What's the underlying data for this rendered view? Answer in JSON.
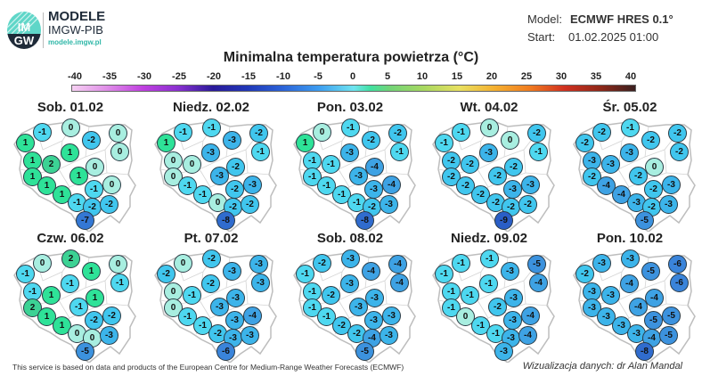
{
  "header": {
    "logo_text": "IMGW",
    "brand_title": "MODELE",
    "brand_subtitle": "IMGW-PIB",
    "brand_url": "modele.imgw.pl",
    "model_label": "Model:",
    "model_value": "ECMWF HRES 0.1°",
    "start_label": "Start:",
    "start_value": "01.02.2025 01:00"
  },
  "title": "Minimalna temperatura powietrza (°C)",
  "colorbar": {
    "ticks": [
      "-40",
      "-35",
      "-30",
      "-25",
      "-20",
      "-15",
      "-10",
      "-5",
      "0",
      "5",
      "10",
      "15",
      "20",
      "25",
      "30",
      "35",
      "40"
    ],
    "range": [
      -40,
      40
    ]
  },
  "maps": [
    {
      "label": "Sob. 01.02",
      "values": [
        1,
        -1,
        0,
        -2,
        0,
        0,
        1,
        1,
        2,
        0,
        1,
        1,
        1,
        -1,
        0,
        1,
        -1,
        -2,
        -2,
        -7
      ]
    },
    {
      "label": "Niedz. 02.02",
      "values": [
        1,
        -1,
        -1,
        -3,
        -2,
        -1,
        -3,
        0,
        0,
        -2,
        0,
        -3,
        -1,
        -2,
        -3,
        -1,
        0,
        -2,
        -2,
        -8
      ]
    },
    {
      "label": "Pon. 03.02",
      "values": [
        1,
        0,
        -1,
        -2,
        -2,
        -1,
        -3,
        -1,
        -1,
        -4,
        -1,
        -3,
        -1,
        -3,
        -4,
        -1,
        -1,
        -2,
        -3,
        -8
      ]
    },
    {
      "label": "Wt. 04.02",
      "values": [
        -1,
        -1,
        0,
        0,
        -2,
        -1,
        -3,
        -2,
        -2,
        -2,
        -2,
        -2,
        -2,
        -3,
        -3,
        -2,
        -2,
        -2,
        -2,
        -9
      ]
    },
    {
      "label": "Śr. 05.02",
      "values": [
        -2,
        -2,
        -1,
        -2,
        -2,
        -2,
        -3,
        -3,
        -3,
        0,
        -2,
        -2,
        -4,
        -2,
        -3,
        -4,
        -3,
        -2,
        -3,
        -5
      ]
    },
    {
      "label": "Czw. 06.02",
      "values": [
        -1,
        0,
        2,
        1,
        0,
        -1,
        -1,
        -1,
        1,
        1,
        2,
        -1,
        1,
        -2,
        -2,
        1,
        0,
        0,
        -3,
        -5
      ]
    },
    {
      "label": "Pt. 07.02",
      "values": [
        -2,
        0,
        -2,
        -3,
        -3,
        -3,
        -2,
        0,
        -1,
        -3,
        0,
        -3,
        -1,
        -3,
        -4,
        -1,
        -2,
        -3,
        -3,
        -6
      ]
    },
    {
      "label": "Sob. 08.02",
      "values": [
        -1,
        -2,
        -3,
        -4,
        -4,
        -4,
        -3,
        -1,
        -2,
        -3,
        -1,
        -3,
        -1,
        -3,
        -3,
        -2,
        -2,
        -4,
        -3,
        -5
      ]
    },
    {
      "label": "Niedz. 09.02",
      "values": [
        -1,
        -1,
        -1,
        -3,
        -5,
        -4,
        -1,
        -1,
        -1,
        -3,
        -1,
        -2,
        0,
        -3,
        -4,
        -1,
        -1,
        -3,
        -4,
        -3
      ]
    },
    {
      "label": "Pon. 10.02",
      "values": [
        -2,
        -3,
        -3,
        -5,
        -6,
        -6,
        -4,
        -3,
        -3,
        -4,
        -3,
        -4,
        -3,
        -5,
        -5,
        -3,
        -3,
        -4,
        -5,
        -8
      ]
    }
  ],
  "footer": {
    "attribution": "This service is based on data and products of the European Centre for Medium-Range Weather Forecasts (ECMWF)",
    "credit": "Wizualizacja danych: dr Alan Mandal"
  }
}
